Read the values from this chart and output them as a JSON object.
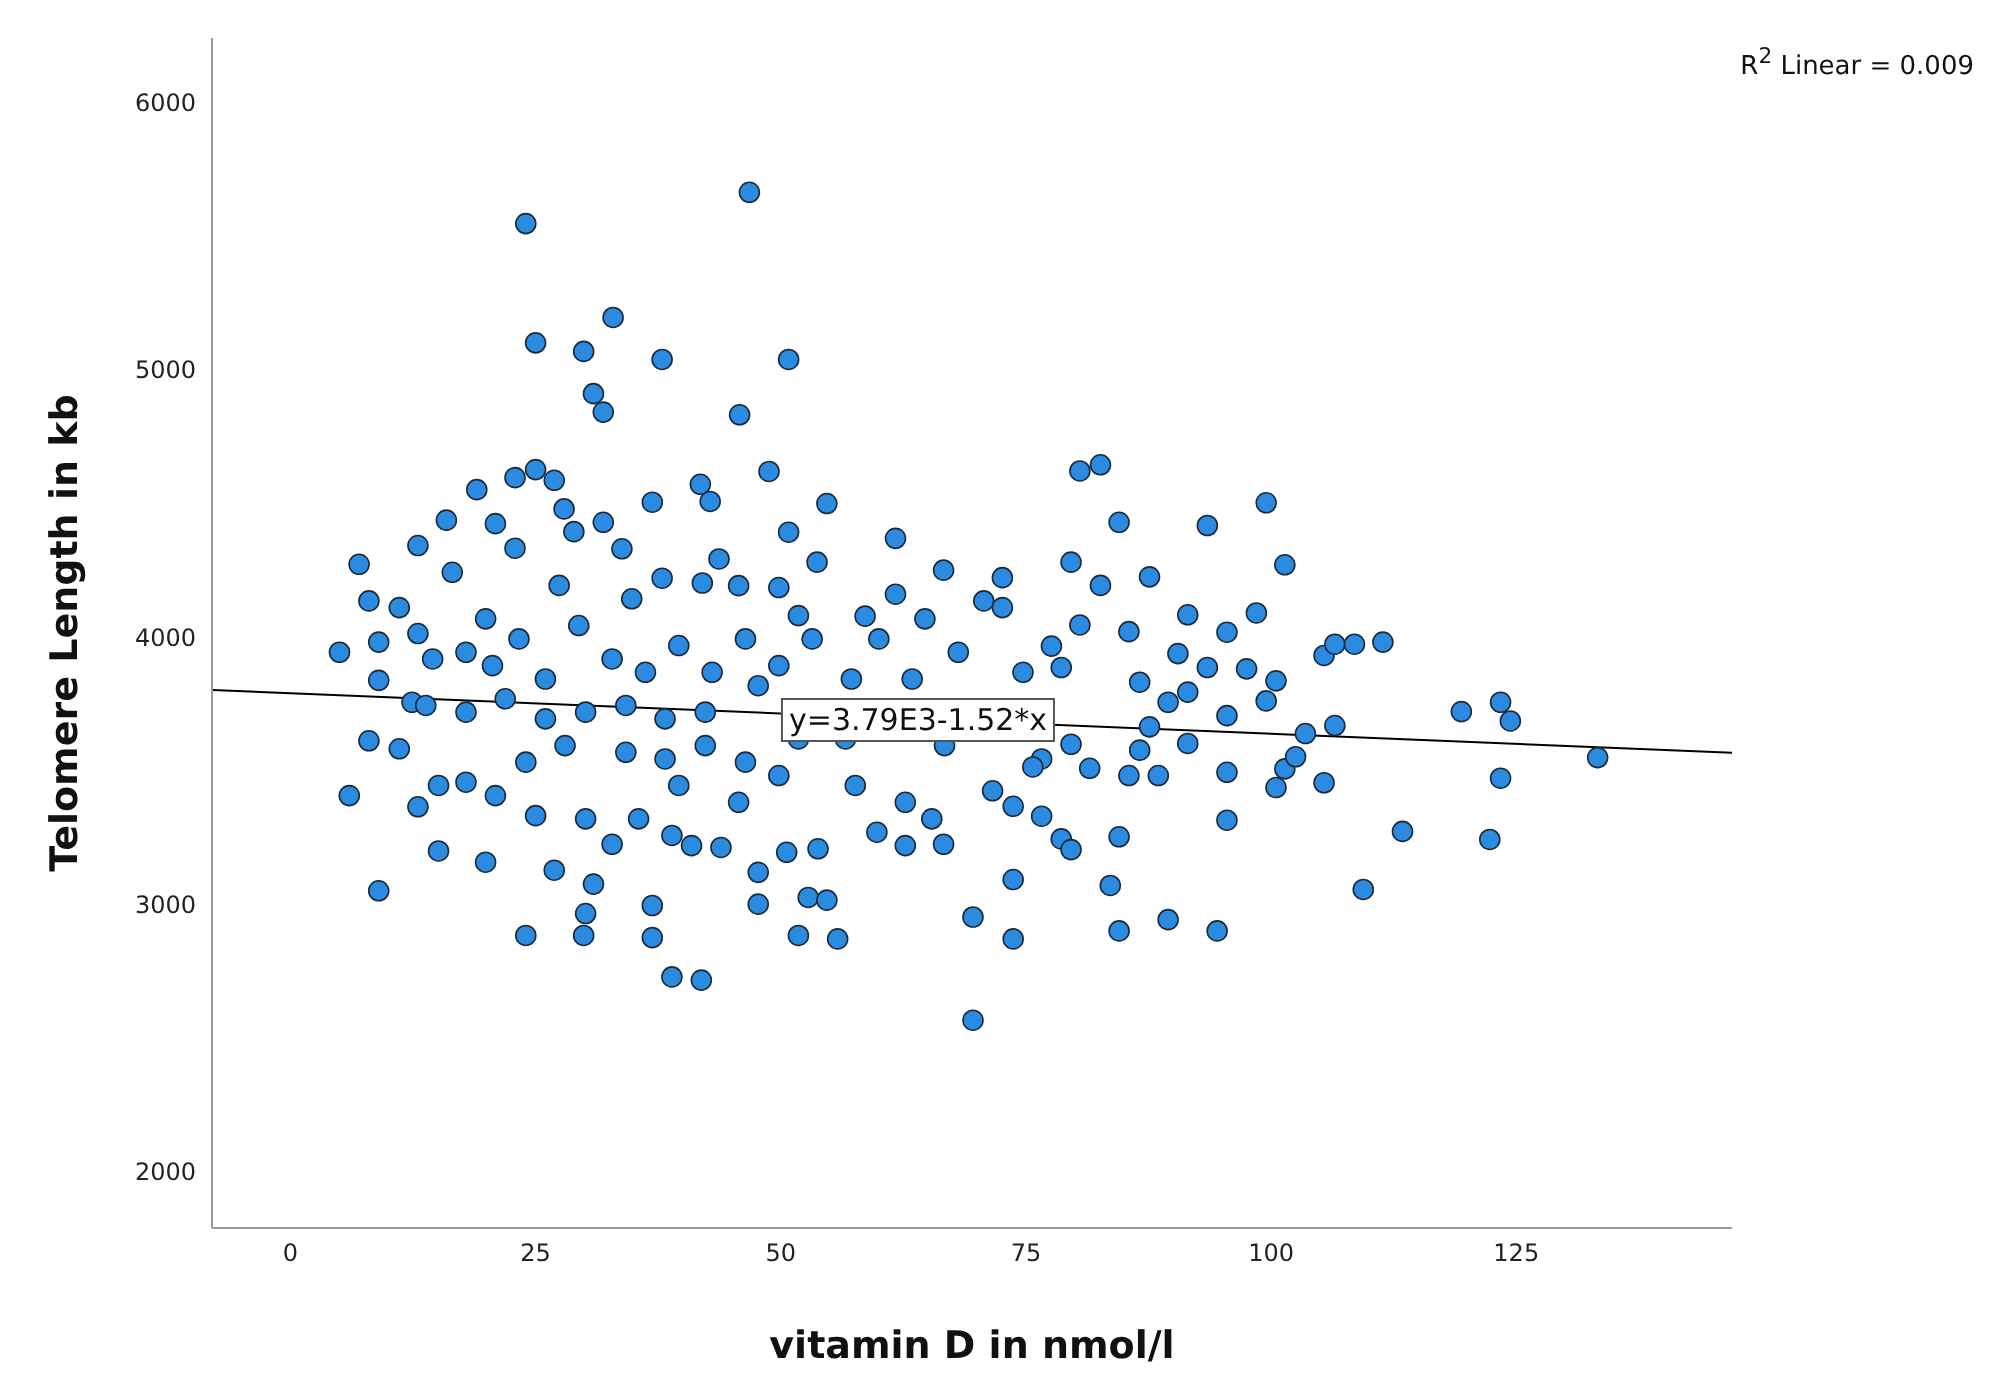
{
  "chart_data": {
    "type": "scatter",
    "xlabel": "vitamin D in nmol/l",
    "ylabel": "Telomere Length in kb",
    "xlim": [
      -8,
      147
    ],
    "xticks": [
      0,
      25,
      50,
      75,
      100,
      125
    ],
    "ylim": [
      1790,
      6240
    ],
    "yticks": [
      2000,
      3000,
      4000,
      5000,
      6000
    ],
    "grid": false,
    "marker": "circle",
    "annotations": [
      {
        "text": "y=3.79E3-1.52*x",
        "x": 64,
        "y": 3693
      },
      "R$^{2}$ Linear = 0.009"
    ],
    "series": [
      {
        "type": "scatter",
        "color": "#2b8be0",
        "x": [
          46.8,
          24.0,
          32.9,
          25.0,
          29.9,
          37.9,
          50.8,
          30.9,
          31.9,
          45.8,
          48.8,
          19.0,
          22.9,
          25.0,
          26.9,
          41.8,
          42.8,
          54.7,
          15.9,
          27.9,
          28.9,
          20.9,
          31.9,
          36.9,
          61.7,
          50.8,
          7.0,
          13.0,
          22.9,
          53.7,
          66.6,
          8.0,
          11.1,
          19.9,
          33.8,
          37.9,
          42.0,
          45.7,
          49.8,
          61.7,
          5.0,
          9.0,
          13.0,
          51.8,
          58.6,
          64.7,
          9.0,
          12.4,
          8.0,
          11.1,
          6.0,
          9.0,
          13.0,
          15.1,
          19.9,
          24.0,
          29.9,
          36.9,
          38.9,
          41.9,
          30.1,
          36.9,
          47.7,
          51.8,
          55.8,
          52.8,
          54.7,
          47.7,
          26.9,
          30.9,
          20.9,
          25.0,
          32.8,
          38.9,
          40.9,
          43.9,
          50.6,
          53.8,
          59.8,
          62.7,
          66.6,
          57.6,
          62.7,
          65.4,
          35.5,
          39.6,
          45.7,
          49.8,
          30.1,
          17.9,
          15.1,
          24.0,
          28.0,
          34.2,
          38.2,
          42.3,
          46.4,
          51.8,
          56.6,
          61.3,
          66.7,
          14.5,
          17.9,
          20.6,
          23.3,
          26.0,
          29.4,
          32.8,
          36.2,
          39.6,
          43.0,
          46.4,
          49.8,
          53.2,
          60.0,
          63.4,
          13.8,
          17.9,
          21.9,
          26.0,
          30.1,
          34.2,
          38.2,
          42.3,
          47.7,
          57.2,
          68.1,
          16.5,
          27.4,
          34.8,
          43.7,
          80.5,
          82.6,
          84.5,
          93.5,
          99.5,
          79.6,
          82.6,
          87.6,
          101.4,
          72.6,
          70.7,
          72.6,
          80.5,
          85.5,
          91.5,
          95.5,
          98.5,
          105.4,
          106.5,
          108.5,
          111.4,
          77.6,
          78.6,
          86.6,
          93.5,
          97.5,
          100.5,
          90.5,
          74.7,
          89.5,
          91.5,
          95.5,
          99.5,
          106.5,
          103.5,
          119.4,
          123.4,
          124.4,
          133.3,
          87.6,
          91.5,
          86.6,
          81.5,
          76.6,
          79.6,
          75.7,
          85.5,
          88.5,
          95.5,
          101.4,
          102.5,
          100.5,
          105.4,
          123.4,
          113.4,
          122.3,
          71.6,
          73.7,
          76.6,
          78.6,
          79.6,
          84.5,
          95.5,
          73.7,
          83.6,
          69.6,
          73.7,
          84.5,
          89.5,
          94.5,
          109.4,
          69.6
        ],
        "values": [
          5663,
          5546,
          5195,
          5100,
          5068,
          5038,
          5038,
          4910,
          4841,
          4831,
          4619,
          4551,
          4596,
          4626,
          4586,
          4571,
          4507,
          4499,
          4437,
          4479,
          4394,
          4424,
          4429,
          4504,
          4369,
          4392,
          4272,
          4342,
          4332,
          4280,
          4250,
          4135,
          4110,
          4068,
          4330,
          4220,
          4202,
          4192,
          4185,
          4160,
          3943,
          3981,
          4013,
          4080,
          4078,
          4068,
          3838,
          3756,
          3612,
          3582,
          3407,
          3051,
          3365,
          3200,
          3158,
          2884,
          2884,
          2876,
          2729,
          2717,
          2966,
          2996,
          3001,
          2884,
          2871,
          3026,
          3016,
          3120,
          3128,
          3076,
          3407,
          3332,
          3225,
          3258,
          3220,
          3213,
          3195,
          3208,
          3270,
          3220,
          3225,
          3445,
          3382,
          3320,
          3320,
          3445,
          3382,
          3482,
          3320,
          3457,
          3445,
          3532,
          3594,
          3569,
          3544,
          3594,
          3532,
          3619,
          3619,
          null,
          3594,
          3918,
          3943,
          3893,
          3993,
          3843,
          4043,
          3918,
          3868,
          3968,
          3868,
          3993,
          3893,
          3993,
          3993,
          3843,
          3744,
          3719,
          3769,
          3694,
          3719,
          3744,
          3694,
          3719,
          3818,
          3843,
          3943,
          4242,
          4193,
          4143,
          4292,
          4621,
          4644,
          4429,
          4417,
          4502,
          4280,
          4193,
          4225,
          4270,
          4222,
          4135,
          4110,
          4045,
          4020,
          4083,
          4018,
          4090,
          3931,
          3973,
          3973,
          3981,
          3966,
          3886,
          3831,
          3886,
          3881,
          3836,
          3938,
          3868,
          3756,
          3794,
          3706,
          3761,
          3669,
          3639,
          3721,
          3756,
          3686,
          3549,
          3664,
          3602,
          3577,
          3509,
          3544,
          3599,
          3514,
          3482,
          3482,
          3494,
          3507,
          3552,
          3437,
          3455,
          3472,
          3273,
          3243,
          3425,
          3367,
          3330,
          3245,
          3205,
          3253,
          3315,
          3093,
          3071,
          2953,
          2871,
          2901,
          2943,
          2901,
          3056,
          2567
        ]
      },
      {
        "type": "line",
        "color": "#000000",
        "marker": "none",
        "x": [
          -8,
          147
        ],
        "values": [
          3802,
          3567
        ]
      }
    ]
  }
}
